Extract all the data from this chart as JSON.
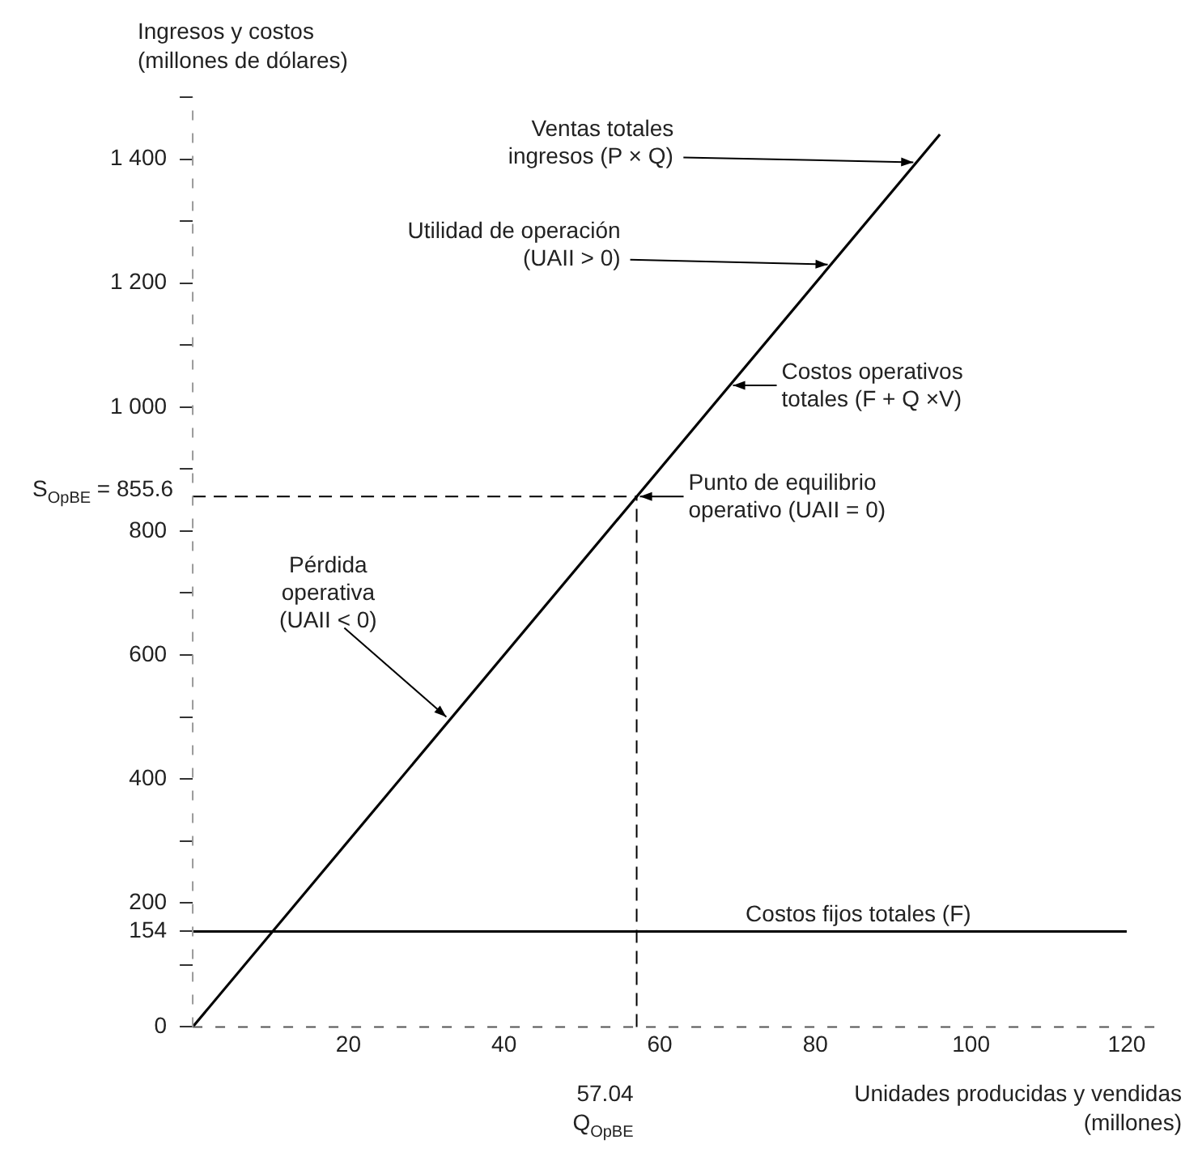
{
  "chart_data": {
    "type": "line",
    "xlabel": "Unidades producidas y vendidas\n(millones)",
    "ylabel": "Ingresos y costos\n(millones de dólares)",
    "series": [
      {
        "x": [
          0,
          96
        ],
        "values": [
          0,
          1440
        ],
        "color": "#000000"
      },
      {
        "x": [
          0,
          120
        ],
        "values": [
          154,
          154
        ],
        "color": "#000000"
      }
    ],
    "xlim": [
      0,
      125
    ],
    "ylim": [
      0,
      1500
    ],
    "xticks": [
      20,
      40,
      60,
      80,
      100,
      120
    ],
    "yticks": [
      0,
      {
        "value": 100,
        "label": null
      },
      {
        "value": 154,
        "label": "154"
      },
      200,
      {
        "value": 300,
        "label": null
      },
      400,
      {
        "value": 500,
        "label": null
      },
      600,
      {
        "value": 700,
        "label": null
      },
      800,
      {
        "value": 900,
        "label": null
      },
      {
        "value": 1000,
        "label": "1 000"
      },
      {
        "value": 1100,
        "label": null
      },
      {
        "value": 1200,
        "label": "1 200"
      },
      {
        "value": 1300,
        "label": null
      },
      {
        "value": 1400,
        "label": "1 400"
      },
      {
        "value": 1500,
        "label": null
      }
    ],
    "ref_lines": [
      {
        "axis": "y",
        "value": 855.6,
        "label": "S$_{OpBE}$ = 855.6",
        "color": "#000000",
        "line_style": "dashed"
      },
      {
        "axis": "x",
        "value": 57.04,
        "label": "57.04\nQ$_{OpBE}$",
        "color": "#000000",
        "line_style": "dashed"
      }
    ],
    "annotations": [
      {
        "text": "Ventas totales\ningresos (P × Q)",
        "x": 93,
        "y": 1395
      },
      {
        "text": "Utilidad de operación\n(UAII > 0)",
        "x": 82,
        "y": 1230
      },
      {
        "text": "Costos operativos\ntotales (F + Q ×V)",
        "x": 69,
        "y": 1035
      },
      {
        "text": "Punto de equilibrio\noperativo (UAII = 0)",
        "x": 57.04,
        "y": 855.6
      },
      {
        "text": "Pérdida\noperativa\n(UAII < 0)",
        "x": 33,
        "y": 495
      },
      {
        "text": "Costos fijos totales (F)",
        "x": 100,
        "y": 154
      }
    ],
    "grid": false,
    "legend": false,
    "marker": "none",
    "line_style": "solid"
  }
}
